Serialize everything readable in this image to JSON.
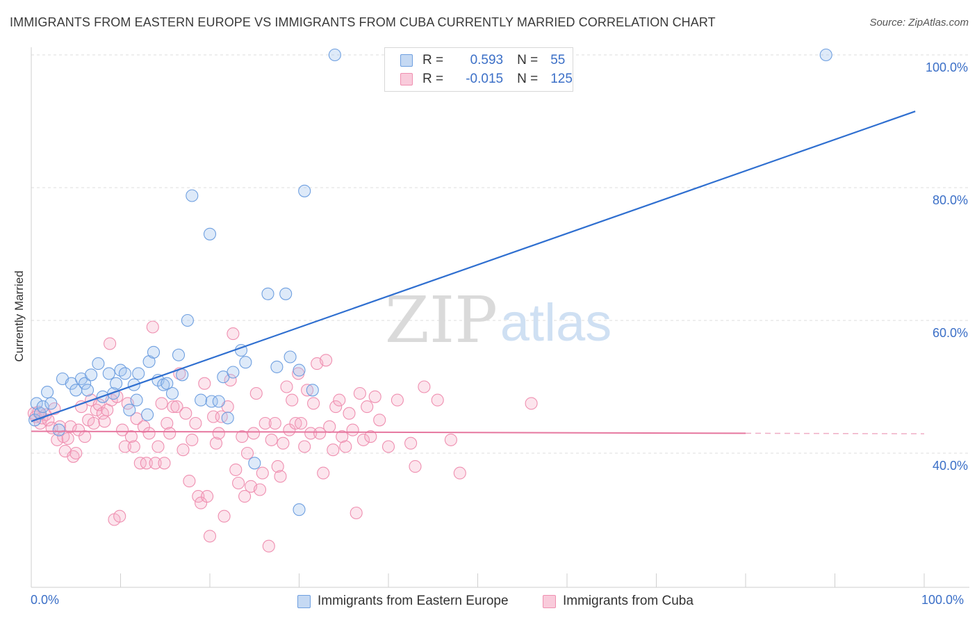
{
  "header": {
    "title": "IMMIGRANTS FROM EASTERN EUROPE VS IMMIGRANTS FROM CUBA CURRENTLY MARRIED CORRELATION CHART",
    "source": "Source: ZipAtlas.com"
  },
  "stats": {
    "r_label": "R =",
    "n_label": "N =",
    "rows": [
      {
        "r": "0.593",
        "n": "55",
        "color": "#6e9fe0"
      },
      {
        "r": "-0.015",
        "n": "125",
        "color": "#ef8fb0"
      }
    ]
  },
  "legend": {
    "items": [
      {
        "label": "Immigrants from Eastern Europe",
        "color": "#6e9fe0"
      },
      {
        "label": "Immigrants from Cuba",
        "color": "#ef8fb0"
      }
    ]
  },
  "chart_data": {
    "type": "scatter",
    "ylabel": "Currently Married",
    "xlim": [
      0,
      100
    ],
    "ylim": [
      20,
      102
    ],
    "x_ticks": [
      "0.0%",
      "100.0%"
    ],
    "y_ticks": [
      {
        "v": 40,
        "label": "40.0%"
      },
      {
        "v": 60,
        "label": "60.0%"
      },
      {
        "v": 80,
        "label": "80.0%"
      },
      {
        "v": 100,
        "label": "100.0%"
      }
    ],
    "grid": true,
    "watermark": {
      "zip": "ZIP",
      "atlas": "atlas"
    },
    "series": [
      {
        "name": "Immigrants from Eastern Europe",
        "color": "#6e9fe0",
        "trend": {
          "x0": 0,
          "y0": 44.8,
          "x1": 99,
          "y1": 91.5
        },
        "points": [
          [
            0.4,
            45.0
          ],
          [
            0.6,
            47.5
          ],
          [
            1.0,
            46.0
          ],
          [
            1.3,
            47.0
          ],
          [
            1.8,
            49.2
          ],
          [
            2.2,
            47.5
          ],
          [
            3.1,
            43.5
          ],
          [
            3.5,
            51.2
          ],
          [
            4.5,
            50.5
          ],
          [
            5.0,
            49.5
          ],
          [
            5.6,
            51.2
          ],
          [
            6.0,
            50.5
          ],
          [
            6.3,
            49.5
          ],
          [
            6.7,
            51.8
          ],
          [
            7.5,
            53.5
          ],
          [
            8.0,
            48.5
          ],
          [
            8.7,
            52.0
          ],
          [
            9.2,
            49.0
          ],
          [
            9.5,
            50.5
          ],
          [
            10.0,
            52.5
          ],
          [
            10.5,
            52.0
          ],
          [
            11.0,
            46.5
          ],
          [
            11.5,
            50.3
          ],
          [
            11.8,
            48.0
          ],
          [
            12.0,
            52.0
          ],
          [
            13.0,
            45.8
          ],
          [
            13.2,
            53.8
          ],
          [
            13.7,
            55.2
          ],
          [
            14.2,
            51.0
          ],
          [
            14.8,
            50.3
          ],
          [
            15.2,
            50.5
          ],
          [
            15.8,
            49.0
          ],
          [
            16.5,
            54.8
          ],
          [
            16.9,
            51.8
          ],
          [
            17.5,
            60.0
          ],
          [
            18.0,
            78.8
          ],
          [
            19.0,
            48.0
          ],
          [
            20.0,
            73.0
          ],
          [
            20.2,
            47.8
          ],
          [
            21.0,
            47.8
          ],
          [
            22.0,
            45.3
          ],
          [
            21.5,
            51.5
          ],
          [
            22.6,
            52.2
          ],
          [
            23.5,
            55.5
          ],
          [
            24.0,
            53.7
          ],
          [
            25.0,
            38.5
          ],
          [
            26.5,
            64.0
          ],
          [
            27.5,
            53.0
          ],
          [
            28.5,
            64.0
          ],
          [
            29.0,
            54.5
          ],
          [
            30.0,
            52.5
          ],
          [
            30.6,
            79.5
          ],
          [
            30.0,
            31.5
          ],
          [
            31.5,
            49.5
          ],
          [
            34.0,
            100.0
          ],
          [
            89.0,
            100.0
          ]
        ]
      },
      {
        "name": "Immigrants from Cuba",
        "color": "#ef8fb0",
        "trend": {
          "x0": 0,
          "y0": 43.3,
          "x1": 80,
          "y1": 43.0,
          "dash_to": 100
        },
        "points": [
          [
            0.3,
            46.0
          ],
          [
            0.5,
            45.5
          ],
          [
            0.8,
            46.2
          ],
          [
            1.0,
            44.5
          ],
          [
            1.2,
            45.3
          ],
          [
            1.6,
            45.8
          ],
          [
            1.9,
            45.0
          ],
          [
            2.3,
            43.8
          ],
          [
            2.6,
            46.7
          ],
          [
            2.9,
            42.0
          ],
          [
            3.2,
            44.0
          ],
          [
            3.6,
            42.5
          ],
          [
            3.8,
            40.3
          ],
          [
            4.1,
            42.2
          ],
          [
            4.4,
            44.0
          ],
          [
            4.7,
            39.5
          ],
          [
            5.0,
            40.0
          ],
          [
            5.3,
            43.5
          ],
          [
            5.6,
            47.0
          ],
          [
            6.0,
            42.5
          ],
          [
            6.4,
            45.0
          ],
          [
            6.7,
            48.0
          ],
          [
            7.0,
            44.5
          ],
          [
            7.3,
            46.5
          ],
          [
            7.6,
            47.3
          ],
          [
            8.0,
            46.0
          ],
          [
            8.2,
            44.8
          ],
          [
            8.5,
            46.5
          ],
          [
            8.8,
            56.5
          ],
          [
            9.0,
            48.0
          ],
          [
            9.3,
            30.0
          ],
          [
            9.6,
            48.5
          ],
          [
            9.9,
            30.5
          ],
          [
            10.2,
            43.5
          ],
          [
            10.5,
            41.0
          ],
          [
            10.8,
            47.5
          ],
          [
            11.2,
            42.5
          ],
          [
            11.5,
            41.0
          ],
          [
            11.8,
            45.2
          ],
          [
            12.2,
            38.5
          ],
          [
            12.6,
            44.0
          ],
          [
            12.9,
            38.5
          ],
          [
            13.2,
            43.0
          ],
          [
            13.6,
            59.0
          ],
          [
            13.9,
            38.5
          ],
          [
            14.2,
            41.0
          ],
          [
            14.6,
            47.5
          ],
          [
            14.9,
            38.5
          ],
          [
            15.2,
            44.5
          ],
          [
            15.5,
            43.0
          ],
          [
            15.9,
            47.0
          ],
          [
            16.3,
            47.0
          ],
          [
            16.6,
            52.0
          ],
          [
            17.0,
            40.5
          ],
          [
            17.3,
            46.0
          ],
          [
            17.7,
            35.8
          ],
          [
            18.0,
            42.0
          ],
          [
            18.4,
            44.5
          ],
          [
            18.7,
            33.5
          ],
          [
            19.0,
            32.5
          ],
          [
            19.4,
            50.5
          ],
          [
            19.7,
            33.5
          ],
          [
            20.0,
            27.5
          ],
          [
            20.4,
            45.5
          ],
          [
            20.7,
            41.5
          ],
          [
            21.0,
            43.0
          ],
          [
            21.3,
            45.5
          ],
          [
            21.6,
            30.5
          ],
          [
            22.0,
            47.0
          ],
          [
            22.3,
            51.0
          ],
          [
            22.6,
            58.0
          ],
          [
            22.9,
            37.5
          ],
          [
            23.2,
            35.5
          ],
          [
            23.6,
            42.5
          ],
          [
            23.9,
            33.5
          ],
          [
            24.2,
            40.0
          ],
          [
            24.6,
            35.0
          ],
          [
            24.9,
            43.0
          ],
          [
            25.2,
            49.0
          ],
          [
            25.6,
            34.5
          ],
          [
            25.9,
            37.0
          ],
          [
            26.2,
            44.5
          ],
          [
            26.6,
            26.0
          ],
          [
            26.9,
            42.0
          ],
          [
            27.3,
            44.5
          ],
          [
            27.6,
            38.0
          ],
          [
            27.9,
            36.5
          ],
          [
            28.2,
            41.5
          ],
          [
            28.6,
            50.0
          ],
          [
            28.9,
            43.5
          ],
          [
            29.2,
            48.0
          ],
          [
            29.6,
            44.5
          ],
          [
            29.9,
            52.0
          ],
          [
            30.2,
            44.5
          ],
          [
            30.6,
            41.0
          ],
          [
            30.9,
            49.5
          ],
          [
            31.3,
            43.0
          ],
          [
            31.6,
            47.5
          ],
          [
            32.0,
            53.5
          ],
          [
            32.3,
            43.0
          ],
          [
            32.7,
            37.0
          ],
          [
            33.0,
            54.0
          ],
          [
            33.4,
            44.0
          ],
          [
            33.8,
            40.5
          ],
          [
            34.1,
            47.0
          ],
          [
            34.5,
            48.0
          ],
          [
            34.8,
            42.5
          ],
          [
            35.2,
            41.0
          ],
          [
            35.6,
            46.0
          ],
          [
            36.0,
            43.5
          ],
          [
            36.4,
            31.0
          ],
          [
            36.8,
            49.0
          ],
          [
            37.2,
            42.0
          ],
          [
            37.6,
            47.0
          ],
          [
            38.0,
            42.5
          ],
          [
            38.5,
            48.5
          ],
          [
            39.0,
            45.0
          ],
          [
            40.0,
            41.0
          ],
          [
            41.0,
            48.0
          ],
          [
            42.5,
            41.5
          ],
          [
            43.0,
            38.0
          ],
          [
            44.0,
            50.0
          ],
          [
            45.5,
            48.0
          ],
          [
            47.0,
            42.0
          ],
          [
            48.0,
            37.0
          ],
          [
            56.0,
            47.5
          ]
        ]
      }
    ]
  }
}
